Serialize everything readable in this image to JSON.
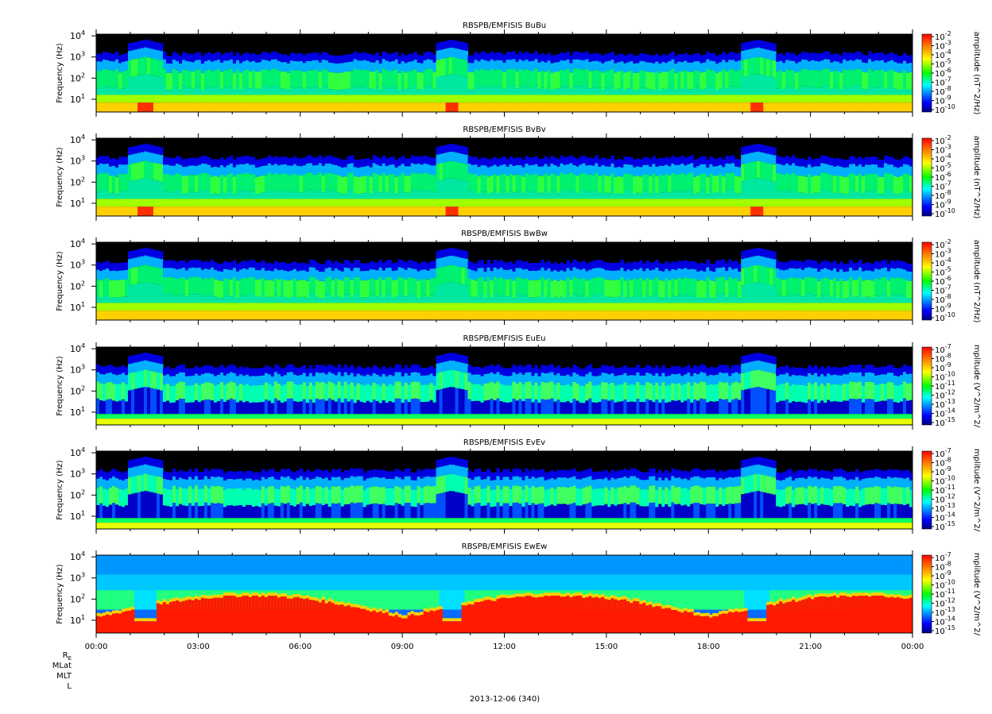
{
  "chart_data": {
    "type": "heatmap",
    "panels": [
      {
        "title": "RBSPB/EMFISIS  BuBu",
        "ylabel": "Frequency (Hz)",
        "cbar_label": "amplitude (nT^2/Hz)",
        "cbar_exponents": [
          -2,
          -3,
          -4,
          -5,
          -6,
          -7,
          -8,
          -9,
          -10
        ],
        "kind": "B"
      },
      {
        "title": "RBSPB/EMFISIS  BvBv",
        "ylabel": "Frequency (Hz)",
        "cbar_label": "amplitude (nT^2/Hz)",
        "cbar_exponents": [
          -2,
          -3,
          -4,
          -5,
          -6,
          -7,
          -8,
          -9,
          -10
        ],
        "kind": "B"
      },
      {
        "title": "RBSPB/EMFISIS  BwBw",
        "ylabel": "Frequency (Hz)",
        "cbar_label": "amplitude (nT^2/Hz)",
        "cbar_exponents": [
          -2,
          -3,
          -4,
          -5,
          -6,
          -7,
          -8,
          -9,
          -10
        ],
        "kind": "B"
      },
      {
        "title": "RBSPB/EMFISIS  EuEu",
        "ylabel": "Frequency (Hz)",
        "cbar_label": "mplitude (V^2/m^2/",
        "cbar_exponents": [
          -7,
          -8,
          -9,
          -10,
          -11,
          -12,
          -13,
          -14,
          -15
        ],
        "kind": "E"
      },
      {
        "title": "RBSPB/EMFISIS  EvEv",
        "ylabel": "Frequency (Hz)",
        "cbar_label": "mplitude (V^2/m^2/",
        "cbar_exponents": [
          -7,
          -8,
          -9,
          -10,
          -11,
          -12,
          -13,
          -14,
          -15
        ],
        "kind": "E"
      },
      {
        "title": "RBSPB/EMFISIS  EwEw",
        "ylabel": "Frequency (Hz)",
        "cbar_label": "mplitude (V^2/m^2/",
        "cbar_exponents": [
          -7,
          -8,
          -9,
          -10,
          -11,
          -12,
          -13,
          -14,
          -15
        ],
        "kind": "Ew"
      }
    ],
    "y_ticks": [
      {
        "base": "10",
        "exp": "4",
        "value": 10000
      },
      {
        "base": "10",
        "exp": "3",
        "value": 1000
      },
      {
        "base": "10",
        "exp": "2",
        "value": 100
      },
      {
        "base": "10",
        "exp": "1",
        "value": 10
      }
    ],
    "y_scale": "log",
    "ylim": [
      2.5,
      12000
    ],
    "x_ticks": [
      "00:00",
      "03:00",
      "06:00",
      "09:00",
      "12:00",
      "15:00",
      "18:00",
      "21:00",
      "00:00"
    ],
    "xlim_hours": [
      0,
      24
    ],
    "colormap": [
      "#000080",
      "#0000ff",
      "#00ffff",
      "#00ff00",
      "#ffff00",
      "#ff8000",
      "#ff0000"
    ]
  },
  "ephemeris_labels": {
    "re": "R",
    "re_sub": "E",
    "mlat": "MLat",
    "mlt": "MLT",
    "l": "L"
  },
  "date_label": "2013-12-06 (340)"
}
